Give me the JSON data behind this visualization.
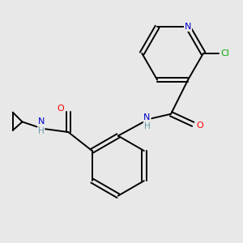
{
  "background_color": "#e8e8e8",
  "bond_color": "#000000",
  "atom_colors": {
    "N": "#0000cc",
    "O": "#ff0000",
    "Cl": "#00aa00",
    "C": "#000000",
    "H": "#6699aa"
  },
  "figsize": [
    3.0,
    3.0
  ],
  "dpi": 100,
  "lw": 1.4,
  "fontsize": 7.5
}
